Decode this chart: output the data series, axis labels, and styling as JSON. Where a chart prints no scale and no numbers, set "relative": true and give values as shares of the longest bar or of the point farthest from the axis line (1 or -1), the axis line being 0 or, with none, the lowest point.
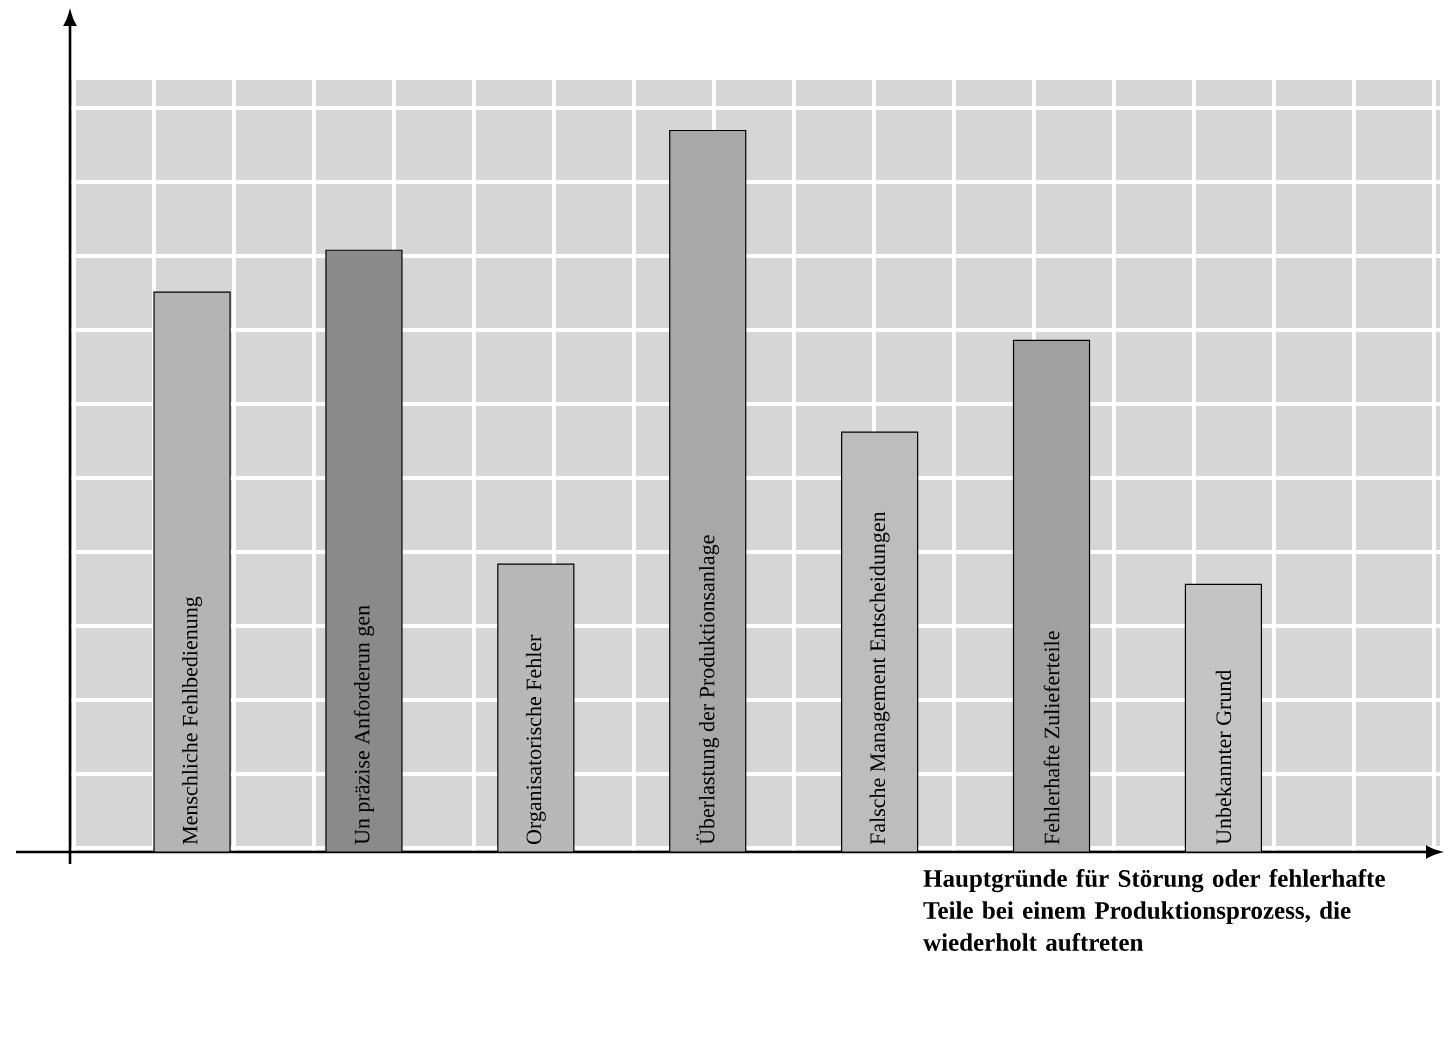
{
  "chart_data": {
    "type": "bar",
    "relative": true,
    "grid": true,
    "xlabel": "Hauptgründe für Störung oder fehlerhafte Teile bei einem Produktionsprozess, die wiederholt auftreten",
    "categories": [
      "Menschliche Fehlbedienung",
      "Un präzise Anforderun gen",
      "Organisatorische Fehler",
      "Überlastung der Produktionsanlage",
      "Falsche Management Entscheidungen",
      "Fehlerhafte Zulieferteile",
      "Unbekannter Grund"
    ],
    "values": [
      0.776,
      0.834,
      0.399,
      1,
      0.582,
      0.709,
      0.371
    ],
    "colors": [
      "#b4b4b4",
      "#8a8a8a",
      "#b8b8b8",
      "#a8a8a8",
      "#bdbdbd",
      "#a0a0a0",
      "#c4c4c4"
    ]
  }
}
